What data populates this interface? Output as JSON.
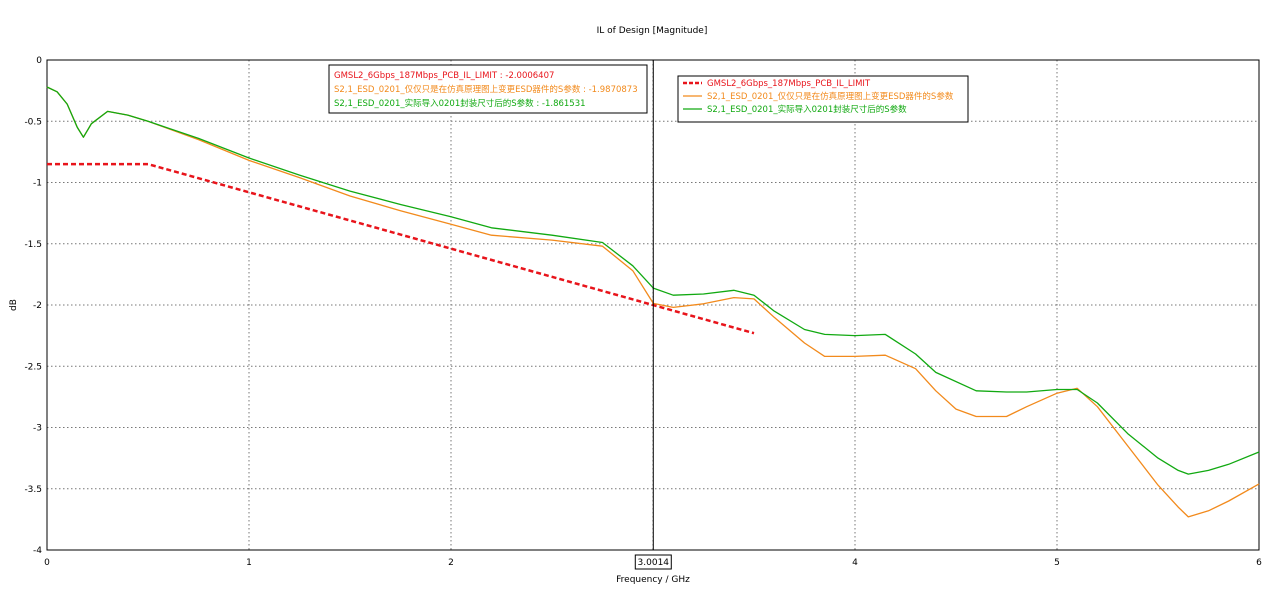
{
  "chart_data": {
    "type": "line",
    "title": "IL of Design [Magnitude]",
    "xlabel": "Frequency / GHz",
    "ylabel": "dB",
    "xlim": [
      0,
      6
    ],
    "ylim": [
      -4,
      0
    ],
    "grid": true,
    "x_ticks": [
      "0",
      "1",
      "2",
      "3",
      "4",
      "5",
      "6"
    ],
    "y_ticks": [
      "0",
      "-0.5",
      "-1",
      "-1.5",
      "-2",
      "-2.5",
      "-3",
      "-3.5",
      "-4"
    ],
    "marker": {
      "x": 3.0014,
      "label": "3.0014",
      "readouts": [
        {
          "text": "GMSL2_6Gbps_187Mbps_PCB_IL_LIMIT : -2.0006407",
          "color": "#e8141b"
        },
        {
          "text": "S2,1_ESD_0201_仅仅只是在仿真原理图上变更ESD器件的S参数 : -1.9870873",
          "color": "#f28a1c"
        },
        {
          "text": "S2,1_ESD_0201_实际导入0201封装尺寸后的S参数 : -1.861531",
          "color": "#11a911"
        }
      ]
    },
    "legend_position": "top-right",
    "series": [
      {
        "name": "GMSL2_6Gbps_187Mbps_PCB_IL_LIMIT",
        "color": "#e8141b",
        "style": "dashed",
        "x": [
          0,
          0.5,
          3.0014,
          3.5
        ],
        "y": [
          -0.85,
          -0.85,
          -2.0006,
          -2.23
        ]
      },
      {
        "name": "S2,1_ESD_0201_仅仅只是在仿真原理图上变更ESD器件的S参数",
        "color": "#f28a1c",
        "style": "solid",
        "x": [
          0,
          0.05,
          0.1,
          0.15,
          0.18,
          0.22,
          0.3,
          0.4,
          0.5,
          0.75,
          1.0,
          1.25,
          1.5,
          1.75,
          2.0,
          2.2,
          2.5,
          2.75,
          2.9,
          3.0014,
          3.1,
          3.25,
          3.4,
          3.5,
          3.6,
          3.75,
          3.85,
          4.0,
          4.15,
          4.3,
          4.4,
          4.5,
          4.6,
          4.75,
          4.85,
          5.0,
          5.1,
          5.2,
          5.35,
          5.5,
          5.6,
          5.65,
          5.75,
          5.85,
          6.0
        ],
        "y": [
          -0.22,
          -0.26,
          -0.36,
          -0.55,
          -0.63,
          -0.52,
          -0.42,
          -0.45,
          -0.5,
          -0.65,
          -0.82,
          -0.96,
          -1.11,
          -1.23,
          -1.34,
          -1.43,
          -1.47,
          -1.52,
          -1.72,
          -1.987,
          -2.02,
          -1.99,
          -1.94,
          -1.95,
          -2.1,
          -2.31,
          -2.42,
          -2.42,
          -2.41,
          -2.52,
          -2.7,
          -2.85,
          -2.91,
          -2.91,
          -2.83,
          -2.72,
          -2.68,
          -2.83,
          -3.15,
          -3.47,
          -3.65,
          -3.73,
          -3.68,
          -3.6,
          -3.46
        ]
      },
      {
        "name": "S2,1_ESD_0201_实际导入0201封装尺寸后的S参数",
        "color": "#11a911",
        "style": "solid",
        "x": [
          0,
          0.05,
          0.1,
          0.15,
          0.18,
          0.22,
          0.3,
          0.4,
          0.5,
          0.75,
          1.0,
          1.25,
          1.5,
          1.75,
          2.0,
          2.2,
          2.5,
          2.75,
          2.9,
          3.0014,
          3.1,
          3.25,
          3.4,
          3.5,
          3.6,
          3.75,
          3.85,
          4.0,
          4.15,
          4.3,
          4.4,
          4.6,
          4.75,
          4.85,
          5.0,
          5.1,
          5.2,
          5.35,
          5.5,
          5.6,
          5.65,
          5.75,
          5.85,
          6.0
        ],
        "y": [
          -0.22,
          -0.26,
          -0.36,
          -0.55,
          -0.63,
          -0.52,
          -0.42,
          -0.45,
          -0.5,
          -0.64,
          -0.8,
          -0.94,
          -1.07,
          -1.18,
          -1.28,
          -1.37,
          -1.43,
          -1.49,
          -1.68,
          -1.862,
          -1.92,
          -1.91,
          -1.88,
          -1.92,
          -2.05,
          -2.2,
          -2.24,
          -2.25,
          -2.24,
          -2.4,
          -2.55,
          -2.7,
          -2.71,
          -2.71,
          -2.69,
          -2.69,
          -2.8,
          -3.05,
          -3.25,
          -3.35,
          -3.38,
          -3.35,
          -3.3,
          -3.2
        ]
      }
    ]
  }
}
